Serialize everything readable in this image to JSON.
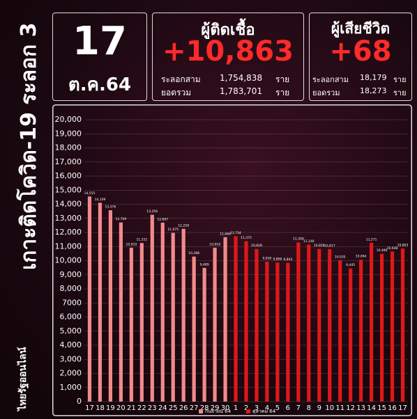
{
  "header": {
    "side_title": "เกาะติดโควิด-19 ระลอก 3",
    "source": "ไทยรัฐออนไลน์",
    "day": "17",
    "month": "ต.ค.64",
    "cases": {
      "title": "ผู้ติดเชื้อ",
      "value": "+10,863",
      "rows": [
        [
          "ระลอกสาม",
          "1,754,838",
          "ราย"
        ],
        [
          "ยอดรวม",
          "1,783,701",
          "ราย"
        ]
      ]
    },
    "deaths": {
      "title": "ผู้เสียชีวิต",
      "value": "+68",
      "rows": [
        [
          "ระลอกสาม",
          "18,179",
          "ราย"
        ],
        [
          "ยอดรวม",
          "18,273",
          "ราย"
        ]
      ]
    }
  },
  "chart_data": {
    "type": "bar",
    "categories": [
      "17",
      "18",
      "19",
      "20",
      "21",
      "22",
      "23",
      "24",
      "25",
      "26",
      "27",
      "28",
      "29",
      "30",
      "1",
      "2",
      "3",
      "4",
      "5",
      "6",
      "7",
      "8",
      "9",
      "10",
      "11",
      "12",
      "13",
      "14",
      "15",
      "16",
      "17"
    ],
    "series": [
      {
        "name": "กันยายน 64",
        "color": "#f28a8a",
        "values": [
          14555,
          14109,
          13576,
          12709,
          10919,
          11252,
          13256,
          12697,
          11975,
          12259,
          10288,
          9489,
          10918,
          11666,
          null,
          null,
          null,
          null,
          null,
          null,
          null,
          null,
          null,
          null,
          null,
          null,
          null,
          null,
          null,
          null,
          null
        ],
        "value_labels": [
          "14,555",
          "14,109",
          "13,576",
          "12,709",
          "10,919",
          "11,252",
          "13,256",
          "12,697",
          "11,975",
          "12,259",
          "10,288",
          "9,489",
          "10,918",
          "11,666",
          null,
          null,
          null,
          null,
          null,
          null,
          null,
          null,
          null,
          null,
          null,
          null,
          null,
          null,
          null,
          null,
          null
        ]
      },
      {
        "name": "ตุลาคม 64",
        "color": "#e01818",
        "values": [
          null,
          null,
          null,
          null,
          null,
          null,
          null,
          null,
          null,
          null,
          null,
          null,
          null,
          null,
          11734,
          11375,
          10828,
          9930,
          9866,
          9843,
          11300,
          11140,
          10828,
          10817,
          10035,
          9445,
          10064,
          11271,
          10486,
          10648,
          10863
        ],
        "value_labels": [
          null,
          null,
          null,
          null,
          null,
          null,
          null,
          null,
          null,
          null,
          null,
          null,
          null,
          null,
          "11,734",
          "11,375",
          "10,828",
          "9,930",
          "9,866",
          "9,843",
          "11,300",
          "11,140",
          "10,828",
          "10,817",
          "10,035",
          "9,445",
          "10,064",
          "11,271",
          "10,486",
          "10,648",
          "10,863"
        ]
      }
    ],
    "ylim": [
      0,
      20000
    ],
    "yticks": [
      0,
      {
        "value": 1000,
        "label": "1,000"
      },
      {
        "value": 2000,
        "label": "2,000"
      },
      {
        "value": 3000,
        "label": "3,000"
      },
      {
        "value": 4000,
        "label": "4,000"
      },
      {
        "value": 5000,
        "label": "5,000"
      },
      {
        "value": 6000,
        "label": "6,000"
      },
      {
        "value": 7000,
        "label": "7000"
      },
      {
        "value": 8000,
        "label": "8,000"
      },
      {
        "value": 9000,
        "label": "9,000"
      },
      {
        "value": 10000,
        "label": "10,000"
      },
      {
        "value": 11000,
        "label": "11,000"
      },
      {
        "value": 12000,
        "label": "12,000"
      },
      {
        "value": 13000,
        "label": "13,000"
      },
      {
        "value": 14000,
        "label": "14,000"
      },
      {
        "value": 15000,
        "label": "15,000"
      },
      {
        "value": 16000,
        "label": "16,000"
      },
      {
        "value": 17000,
        "label": "17,000"
      },
      {
        "value": 18000,
        "label": "18,000"
      },
      {
        "value": 19000,
        "label": "19,000"
      },
      {
        "value": 20000,
        "label": "20,000"
      }
    ],
    "grid": true
  }
}
